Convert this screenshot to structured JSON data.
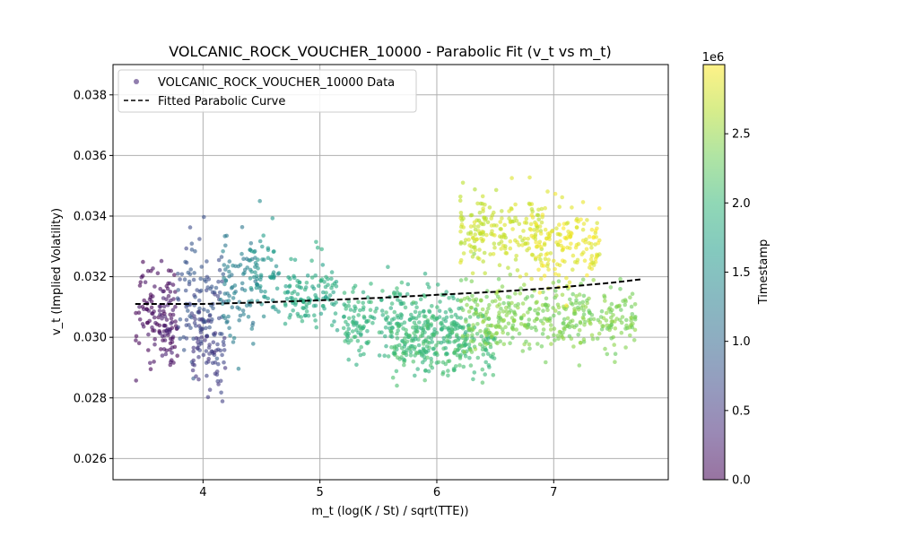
{
  "chart_data": {
    "type": "scatter",
    "title": "VOLCANIC_ROCK_VOUCHER_10000 - Parabolic Fit (v_t vs m_t)",
    "xlabel": "m_t (log(K / St) / sqrt(TTE))",
    "ylabel": "v_t (Implied Volatility)",
    "xlim": [
      3.23,
      7.98
    ],
    "ylim": [
      0.0253,
      0.039
    ],
    "x_ticks": [
      4,
      5,
      6,
      7
    ],
    "y_ticks": [
      0.026,
      0.028,
      0.03,
      0.032,
      0.034,
      0.036,
      0.038
    ],
    "x_tick_labels": [
      "4",
      "5",
      "6",
      "7"
    ],
    "y_tick_labels": [
      "0.026",
      "0.028",
      "0.030",
      "0.032",
      "0.034",
      "0.036",
      "0.038"
    ],
    "grid": true,
    "legend_position": "top-left",
    "series": [
      {
        "name": "VOLCANIC_ROCK_VOUCHER_10000 Data",
        "kind": "scatter",
        "color_by": "Timestamp",
        "clusters": [
          {
            "x_range": [
              3.42,
              3.78
            ],
            "y_center": 0.031,
            "y_spread": 0.0016,
            "t": 0.05
          },
          {
            "x_range": [
              3.58,
              3.75
            ],
            "y_center": 0.0302,
            "y_spread": 0.0012,
            "t": 0.2
          },
          {
            "x_range": [
              3.78,
              4.18
            ],
            "y_center": 0.0312,
            "y_spread": 0.0018,
            "t": 0.75
          },
          {
            "x_range": [
              3.9,
              4.2
            ],
            "y_center": 0.0298,
            "y_spread": 0.0012,
            "t": 0.55
          },
          {
            "x_range": [
              4.15,
              4.45
            ],
            "y_center": 0.0317,
            "y_spread": 0.0016,
            "t": 1.25
          },
          {
            "x_range": [
              4.4,
              4.65
            ],
            "y_center": 0.032,
            "y_spread": 0.0013,
            "t": 1.55
          },
          {
            "x_range": [
              4.7,
              5.15
            ],
            "y_center": 0.0314,
            "y_spread": 0.001,
            "t": 1.8
          },
          {
            "x_range": [
              5.2,
              6.25
            ],
            "y_center": 0.0305,
            "y_spread": 0.0011,
            "t": 1.95
          },
          {
            "x_range": [
              5.6,
              6.5
            ],
            "y_center": 0.0298,
            "y_spread": 0.001,
            "t": 2.05
          },
          {
            "x_range": [
              6.2,
              7.7
            ],
            "y_center": 0.0306,
            "y_spread": 0.001,
            "t": 2.4
          },
          {
            "x_range": [
              6.2,
              6.9
            ],
            "y_center": 0.0335,
            "y_spread": 0.0012,
            "t": 2.75
          },
          {
            "x_range": [
              6.8,
              7.4
            ],
            "y_center": 0.033,
            "y_spread": 0.0012,
            "t": 2.9
          }
        ]
      },
      {
        "name": "Fitted Parabolic Curve",
        "kind": "line",
        "style": "dashed",
        "color": "#000000",
        "x": [
          3.42,
          4.0,
          4.5,
          5.0,
          5.5,
          6.0,
          6.5,
          7.0,
          7.5,
          7.76
        ],
        "y": [
          0.0311,
          0.0311,
          0.03115,
          0.03122,
          0.0313,
          0.0314,
          0.0315,
          0.03163,
          0.0318,
          0.03192
        ]
      }
    ],
    "colorbar": {
      "label": "Timestamp",
      "multiplier": "1e6",
      "range": [
        0,
        3.0
      ],
      "ticks": [
        0.0,
        0.5,
        1.0,
        1.5,
        2.0,
        2.5
      ],
      "tick_labels": [
        "0.0",
        "0.5",
        "1.0",
        "1.5",
        "2.0",
        "2.5"
      ],
      "colormap": "viridis"
    }
  },
  "colors": {
    "grid": "#b0b0b0",
    "axis": "#000000",
    "viridis": [
      "#440154",
      "#482878",
      "#3e4989",
      "#31688e",
      "#26828e",
      "#1f9e89",
      "#35b779",
      "#6ece58",
      "#b5de2b",
      "#fde725"
    ]
  }
}
